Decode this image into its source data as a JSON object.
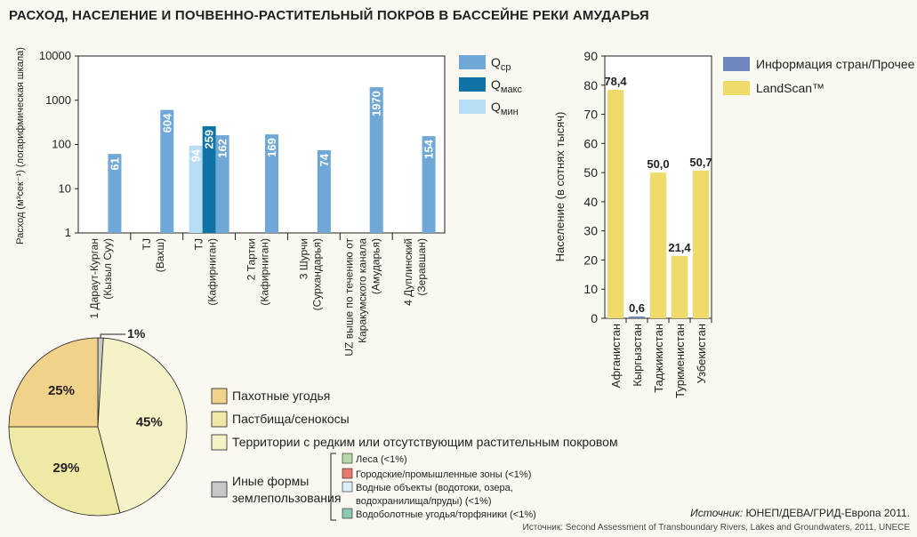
{
  "title": "РАСХОД, НАСЕЛЕНИЕ И ПОЧВЕННО-РАСТИТЕЛЬНЫЙ ПОКРОВ В БАССЕЙНЕ РЕКИ АМУДАРЬЯ",
  "colors": {
    "q_avg": "#6fa8d6",
    "q_max": "#0f73a6",
    "q_min": "#b8def5",
    "info": "#6d86bd",
    "landscan": "#eedb6a",
    "arable": "#f1d28a",
    "pasture": "#eeeaa6",
    "sparse": "#f6f2c8",
    "other": "#c8c8c8",
    "forest": "#b6d8a7",
    "urban": "#e77a6a",
    "water": "#d9eef8",
    "wetland": "#8dc8b5"
  },
  "chart_data": [
    {
      "type": "bar",
      "title": "",
      "scale": "log",
      "ylabel": "Расход (м³сек⁻¹) (логарифмическая шкала)",
      "yticks": [
        "1",
        "10",
        "100",
        "1000",
        "10000"
      ],
      "ylim": [
        1,
        10000
      ],
      "legend": [
        {
          "key": "q_avg",
          "label": "Q",
          "sub": "ср"
        },
        {
          "key": "q_max",
          "label": "Q",
          "sub": "макс"
        },
        {
          "key": "q_min",
          "label": "Q",
          "sub": "мин"
        }
      ],
      "categories": [
        {
          "line1": "1 Дараут-Курган",
          "line2": "(Кызыл Суу)"
        },
        {
          "line1": "TJ",
          "line2": "(Вахш)"
        },
        {
          "line1": "TJ",
          "line2": "(Кафирниган)"
        },
        {
          "line1": "2 Тартки",
          "line2": "(Кафирниган)"
        },
        {
          "line1": "3 Шурчи",
          "line2": "(Сурхандарья)"
        },
        {
          "line1": "UZ выше по течению от",
          "line2": "Каракумского канала",
          "line3": "(Амударья)"
        },
        {
          "line1": "4 Дуплинский",
          "line2": "(Зеравшан)"
        }
      ],
      "bars": [
        {
          "cat": 0,
          "series": "q_avg",
          "value": 61,
          "label": "61"
        },
        {
          "cat": 1,
          "series": "q_avg",
          "value": 604,
          "label": "604"
        },
        {
          "cat": 2,
          "series": "q_min",
          "value": 94,
          "label": "94"
        },
        {
          "cat": 2,
          "series": "q_max",
          "value": 259,
          "label": "259"
        },
        {
          "cat": 2,
          "series": "q_avg",
          "value": 162,
          "label": "162"
        },
        {
          "cat": 3,
          "series": "q_avg",
          "value": 169,
          "label": "169"
        },
        {
          "cat": 4,
          "series": "q_avg",
          "value": 74,
          "label": "74"
        },
        {
          "cat": 5,
          "series": "q_avg",
          "value": 1970,
          "label": "1970"
        },
        {
          "cat": 6,
          "series": "q_avg",
          "value": 154,
          "label": "154"
        }
      ]
    },
    {
      "type": "bar",
      "ylabel": "Население (в сотнях тысяч)",
      "ylim": [
        0,
        90
      ],
      "yticks": [
        "0",
        "10",
        "20",
        "30",
        "40",
        "50",
        "60",
        "70",
        "80",
        "90"
      ],
      "categories": [
        "Афганистан",
        "Кыргызстан",
        "Таджикистан",
        "Туркменистан",
        "Узбекистан"
      ],
      "values": [
        78.4,
        0.6,
        50.0,
        21.4,
        50.7
      ],
      "value_labels": [
        "78,4",
        "0,6",
        "50,0",
        "21,4",
        "50,7"
      ],
      "series_color": [
        "landscan",
        "info",
        "landscan",
        "landscan",
        "landscan"
      ],
      "legend": [
        {
          "key": "info",
          "label": "Информация стран/Прочее"
        },
        {
          "key": "landscan",
          "label": "LandScan™"
        }
      ]
    },
    {
      "type": "pie",
      "slices": [
        {
          "key": "other",
          "value": 1,
          "label": "1%"
        },
        {
          "key": "sparse",
          "value": 45,
          "label": "45%"
        },
        {
          "key": "pasture",
          "value": 29,
          "label": "29%"
        },
        {
          "key": "arable",
          "value": 25,
          "label": "25%"
        }
      ],
      "legend": [
        {
          "key": "arable",
          "label": "Пахотные угодья"
        },
        {
          "key": "pasture",
          "label": "Пастбища/сенокосы"
        },
        {
          "key": "sparse",
          "label": "Территории с редким или отсутствующим растительным покровом"
        },
        {
          "key": "other",
          "label": "Иные формы",
          "label2": "землепользования"
        }
      ],
      "sub_legend": [
        {
          "key": "forest",
          "label": "Леса (<1%)"
        },
        {
          "key": "urban",
          "label": "Городские/промышленные зоны (<1%)"
        },
        {
          "key": "water",
          "label": "Водные объекты (водотоки, озера,",
          "label2": "водохранилища/пруды) (<1%)"
        },
        {
          "key": "wetland",
          "label": "Водоболотные угодья/торфяники (<1%)"
        }
      ]
    }
  ],
  "source": {
    "prefix": "Источник:",
    "text": " ЮНЕП/ДЕВА/ГРИД-Европа 2011.",
    "line2": "Источник: Second Assessment of Transboundary Rivers, Lakes and Groundwaters, 2011, UNECE"
  }
}
